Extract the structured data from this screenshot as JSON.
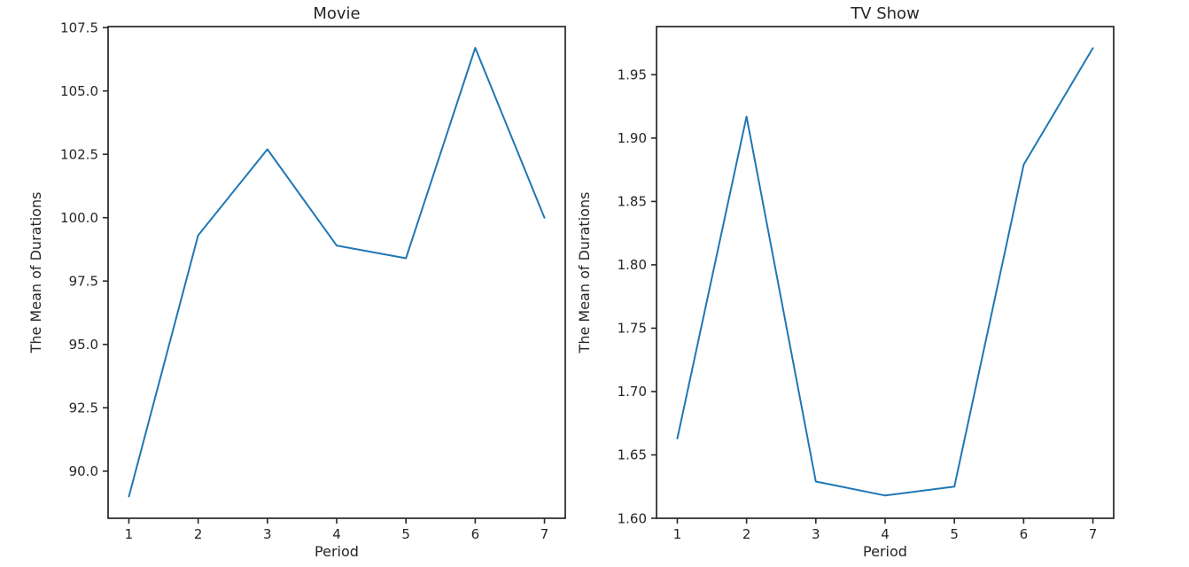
{
  "figure": {
    "description": "Two side-by-side line charts of mean durations per period",
    "background": "#ffffff"
  },
  "colors": {
    "axis": "#262626",
    "text": "#262626",
    "line": "#1f77b4",
    "background": "#ffffff"
  },
  "chart_data": [
    {
      "type": "line",
      "title": "Movie",
      "xlabel": "Period",
      "ylabel": "The Mean of Durations",
      "x": [
        1,
        2,
        3,
        4,
        5,
        6,
        7
      ],
      "values": [
        89.0,
        99.3,
        102.7,
        98.9,
        98.4,
        106.7,
        100.0
      ],
      "xlim": [
        0.7,
        7.3
      ],
      "ylim": [
        88.14,
        107.54
      ],
      "xticks": [
        1,
        2,
        3,
        4,
        5,
        6,
        7
      ],
      "xtick_labels": [
        "1",
        "2",
        "3",
        "4",
        "5",
        "6",
        "7"
      ],
      "yticks": [
        90.0,
        92.5,
        95.0,
        97.5,
        100.0,
        102.5,
        105.0,
        107.5
      ],
      "ytick_labels": [
        "90.0",
        "92.5",
        "95.0",
        "97.5",
        "100.0",
        "102.5",
        "105.0",
        "107.5"
      ],
      "line_color": "#1f77b4",
      "grid": false,
      "legend": null
    },
    {
      "type": "line",
      "title": "TV Show",
      "xlabel": "Period",
      "ylabel": "The Mean of Durations",
      "x": [
        1,
        2,
        3,
        4,
        5,
        6,
        7
      ],
      "values": [
        1.663,
        1.917,
        1.629,
        1.618,
        1.625,
        1.879,
        1.971
      ],
      "xlim": [
        0.7,
        7.3
      ],
      "ylim": [
        1.6,
        1.988
      ],
      "xticks": [
        1,
        2,
        3,
        4,
        5,
        6,
        7
      ],
      "xtick_labels": [
        "1",
        "2",
        "3",
        "4",
        "5",
        "6",
        "7"
      ],
      "yticks": [
        1.6,
        1.65,
        1.7,
        1.75,
        1.8,
        1.85,
        1.9,
        1.95
      ],
      "ytick_labels": [
        "1.60",
        "1.65",
        "1.70",
        "1.75",
        "1.80",
        "1.85",
        "1.90",
        "1.95"
      ],
      "line_color": "#1f77b4",
      "grid": false,
      "legend": null
    }
  ]
}
